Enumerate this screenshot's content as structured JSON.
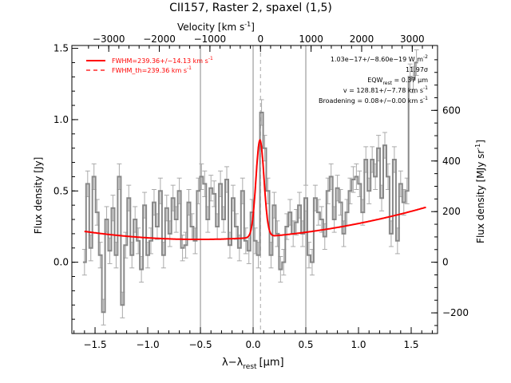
{
  "chart_data": {
    "type": "line",
    "title": "CII157, Raster 2, spaxel (1,5)",
    "xlabel": "λ−λ",
    "xlabel_sub": "rest",
    "xlabel_unit": "[μm]",
    "ylabel": "Flux density [Jy]",
    "top_xlabel": "Velocity [km s",
    "top_xlabel_sup": "-1",
    "top_xlabel_end": "]",
    "right_ylabel": "Flux density [MJy sr",
    "right_ylabel_sup": "-1",
    "right_ylabel_end": "]",
    "xlim": [
      -1.72,
      1.75
    ],
    "ylim": [
      -0.5,
      1.52
    ],
    "xticks": [
      -1.5,
      -1.0,
      -0.5,
      0.0,
      0.5,
      1.0,
      1.5
    ],
    "xtick_labels": [
      "−1.5",
      "−1.0",
      "−0.5",
      "0.0",
      "0.5",
      "1.0",
      "1.5"
    ],
    "yticks": [
      0.0,
      0.5,
      1.0,
      1.5
    ],
    "ytick_labels": [
      "0.0",
      "0.5",
      "1.0",
      "1.5"
    ],
    "top_ticks_km_s": [
      -3000,
      -2000,
      -1000,
      0,
      1000,
      2000,
      3000
    ],
    "top_tick_labels": [
      "−3000",
      "−2000",
      "−1000",
      "0",
      "1000",
      "2000",
      "3000"
    ],
    "right_ticks_mjy": [
      -200,
      0,
      200,
      400,
      600
    ],
    "right_tick_labels": [
      "−200",
      "0",
      "200",
      "400",
      "600"
    ],
    "vertical_lines_x": [
      -0.5,
      0.0,
      0.5
    ],
    "rest_line_x": 0.07,
    "legend": {
      "position": "top-left",
      "entries": [
        {
          "label": "FWHM=239.36+/−14.13 km s",
          "sup": "-1",
          "style": "solid",
          "color": "#ff0000"
        },
        {
          "label": "FWHM_th=239.36 km s",
          "sup": "-1",
          "style": "dashed",
          "color": "#ff0000"
        }
      ]
    },
    "annotations": [
      {
        "text": "1.03e−17+/−8.60e−19 W m",
        "sup": "-2"
      },
      {
        "text": "11.97σ",
        "sup": ""
      },
      {
        "text": "EQW",
        "sub": "rest",
        "text2": " = 0.37 μm",
        "sup": ""
      },
      {
        "text": "v = 128.81+/−7.78 km s",
        "sup": "-1"
      },
      {
        "text": "Broadening = 0.08+/−0.00 km s",
        "sup": "-1"
      }
    ],
    "colors": {
      "spectrum": "#888888",
      "errorbar": "#aaaaaa",
      "fit": "#ff0000",
      "axes": "#000000",
      "guide": "#888888"
    },
    "series": [
      {
        "name": "data",
        "x": [
          -1.6,
          -1.57,
          -1.54,
          -1.51,
          -1.48,
          -1.45,
          -1.42,
          -1.39,
          -1.36,
          -1.33,
          -1.3,
          -1.27,
          -1.24,
          -1.21,
          -1.18,
          -1.15,
          -1.12,
          -1.09,
          -1.06,
          -1.03,
          -1.0,
          -0.97,
          -0.94,
          -0.91,
          -0.88,
          -0.85,
          -0.82,
          -0.79,
          -0.76,
          -0.73,
          -0.7,
          -0.67,
          -0.64,
          -0.61,
          -0.58,
          -0.55,
          -0.52,
          -0.49,
          -0.46,
          -0.43,
          -0.4,
          -0.37,
          -0.34,
          -0.31,
          -0.28,
          -0.25,
          -0.22,
          -0.19,
          -0.16,
          -0.13,
          -0.1,
          -0.07,
          -0.04,
          -0.01,
          0.02,
          0.05,
          0.08,
          0.11,
          0.14,
          0.17,
          0.2,
          0.23,
          0.26,
          0.29,
          0.32,
          0.35,
          0.38,
          0.41,
          0.44,
          0.47,
          0.5,
          0.53,
          0.56,
          0.59,
          0.62,
          0.65,
          0.68,
          0.71,
          0.74,
          0.77,
          0.8,
          0.83,
          0.86,
          0.89,
          0.92,
          0.95,
          0.98,
          1.01,
          1.04,
          1.07,
          1.1,
          1.13,
          1.16,
          1.19,
          1.22,
          1.25,
          1.28,
          1.31,
          1.34,
          1.37,
          1.4,
          1.43,
          1.46,
          1.49,
          1.52,
          1.55
        ],
        "y": [
          0.0,
          0.55,
          0.1,
          0.6,
          0.35,
          0.05,
          -0.35,
          0.3,
          0.08,
          0.38,
          0.05,
          0.6,
          -0.3,
          0.12,
          0.45,
          0.05,
          0.3,
          0.15,
          -0.05,
          0.4,
          0.05,
          0.15,
          0.42,
          0.25,
          0.5,
          0.05,
          0.38,
          0.2,
          0.45,
          0.3,
          0.5,
          0.1,
          0.12,
          0.42,
          0.25,
          0.15,
          0.5,
          0.6,
          0.55,
          0.3,
          0.52,
          0.48,
          0.25,
          0.55,
          0.3,
          0.58,
          0.12,
          0.45,
          0.25,
          0.1,
          0.5,
          0.15,
          0.08,
          0.35,
          0.15,
          0.05,
          1.05,
          0.8,
          0.5,
          0.05,
          0.4,
          0.2,
          -0.05,
          0.0,
          0.25,
          0.35,
          0.2,
          0.28,
          0.4,
          0.2,
          0.45,
          0.05,
          0.0,
          0.45,
          0.35,
          0.3,
          0.18,
          0.5,
          0.6,
          0.3,
          0.52,
          0.42,
          0.2,
          0.35,
          0.5,
          0.58,
          0.6,
          0.55,
          0.35,
          0.72,
          0.5,
          0.72,
          0.6,
          0.8,
          0.45,
          0.82,
          0.6,
          0.2,
          0.72,
          0.15,
          0.55,
          0.42,
          0.5,
          1.3,
          1.28,
          1.4
        ]
      },
      {
        "name": "fit",
        "baseline": {
          "a": 0.16,
          "b": 0.115,
          "c": 0.1,
          "xmin": -0.52
        },
        "gaussian": {
          "amp": 0.68,
          "center": 0.065,
          "sigma": 0.038
        },
        "xrange": [
          -1.6,
          1.64
        ]
      }
    ]
  }
}
